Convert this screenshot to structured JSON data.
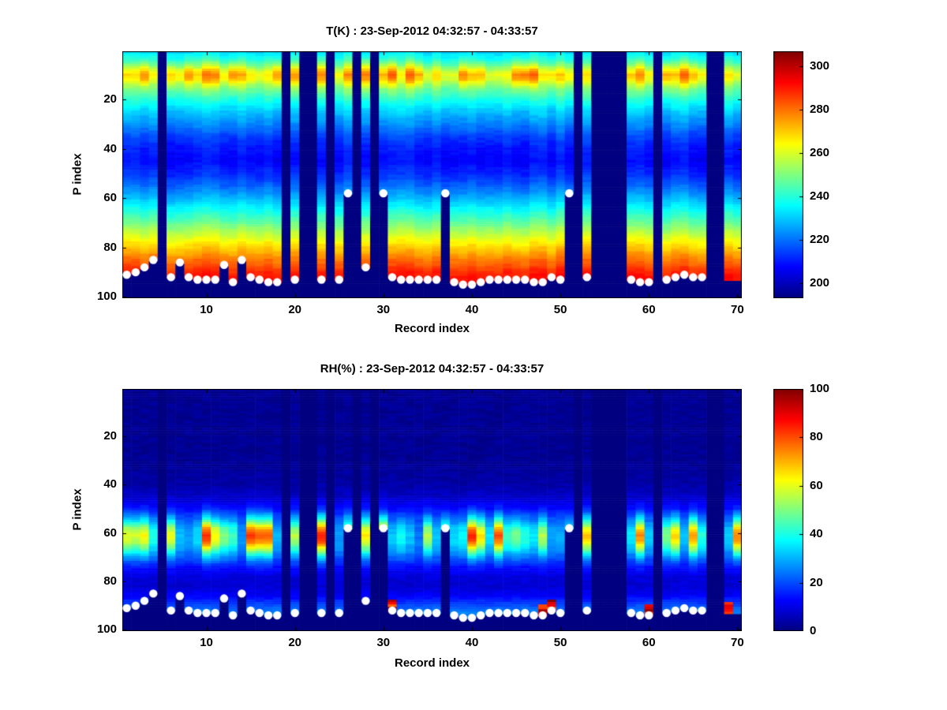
{
  "figure": {
    "background": "#ffffff",
    "text_color": "#000000"
  },
  "chart_data": [
    {
      "type": "heatmap",
      "value_model": "temperature",
      "title": "T(K) : 23-Sep-2012 04:32:57 - 04:33:57",
      "xlabel": "Record index",
      "ylabel": "P index",
      "x_axis": "record index 1-70",
      "y_axis": "pressure level index 1-100, increasing downward",
      "x_ticks": [
        10,
        20,
        30,
        40,
        50,
        60,
        70
      ],
      "y_ticks": [
        20,
        40,
        60,
        80,
        100
      ],
      "x_range": [
        0.5,
        70.5
      ],
      "y_range": [
        0.5,
        100.5
      ],
      "n_records": 70,
      "n_levels": 100,
      "colormap": "jet",
      "clim": [
        193,
        307
      ],
      "colorbar_ticks": [
        200,
        220,
        240,
        260,
        280,
        300
      ],
      "profile_control_points": [
        [
          1,
          233
        ],
        [
          4,
          242
        ],
        [
          6,
          252
        ],
        [
          8,
          264
        ],
        [
          10,
          272
        ],
        [
          12,
          268
        ],
        [
          14,
          258
        ],
        [
          16,
          250
        ],
        [
          20,
          240
        ],
        [
          25,
          230
        ],
        [
          30,
          223
        ],
        [
          35,
          215
        ],
        [
          40,
          210
        ],
        [
          45,
          208
        ],
        [
          50,
          212
        ],
        [
          55,
          219
        ],
        [
          60,
          228
        ],
        [
          65,
          238
        ],
        [
          70,
          248
        ],
        [
          75,
          259
        ],
        [
          80,
          270
        ],
        [
          85,
          280
        ],
        [
          90,
          289
        ],
        [
          95,
          295
        ],
        [
          100,
          298
        ]
      ],
      "band_level": 10,
      "band_variation": 20,
      "column_variation": 5,
      "noise": 3,
      "missing_records": [
        5,
        19,
        21,
        22,
        24,
        27,
        29,
        52,
        54,
        55,
        56,
        57,
        61,
        67,
        68
      ],
      "surface_p": [
        91,
        90,
        88,
        85,
        null,
        92,
        86,
        92,
        93,
        93,
        93,
        87,
        94,
        85,
        92,
        93,
        94,
        94,
        null,
        93,
        null,
        null,
        93,
        null,
        93,
        58,
        null,
        88,
        null,
        58,
        92,
        93,
        93,
        93,
        93,
        93,
        58,
        94,
        95,
        95,
        94,
        93,
        93,
        93,
        93,
        93,
        94,
        94,
        92,
        93,
        58,
        null,
        92,
        null,
        null,
        null,
        null,
        93,
        94,
        94,
        null,
        93,
        92,
        91,
        92,
        92,
        null,
        null,
        93,
        93
      ],
      "no_dot_records": [
        69,
        70
      ],
      "dots": "white markers drawn at surface_p level for every non-missing record except no_dot_records",
      "marker_color": "#ffffff",
      "background_color_note": "missing columns and sub-surface cells shown at colormap minimum (dark navy)"
    },
    {
      "type": "heatmap",
      "value_model": "humidity",
      "title": "RH(%) : 23-Sep-2012 04:32:57 - 04:33:57",
      "xlabel": "Record index",
      "ylabel": "P index",
      "x_axis": "record index 1-70",
      "y_axis": "pressure level index 1-100, increasing downward",
      "x_ticks": [
        10,
        20,
        30,
        40,
        50,
        60,
        70
      ],
      "y_ticks": [
        20,
        40,
        60,
        80,
        100
      ],
      "x_range": [
        0.5,
        70.5
      ],
      "y_range": [
        0.5,
        100.5
      ],
      "n_records": 70,
      "n_levels": 100,
      "colormap": "jet",
      "clim": [
        0,
        100
      ],
      "colorbar_ticks": [
        0,
        20,
        40,
        60,
        80,
        100
      ],
      "profile_control_points": [
        [
          1,
          2
        ],
        [
          30,
          2
        ],
        [
          40,
          4
        ],
        [
          45,
          7
        ],
        [
          50,
          14
        ],
        [
          55,
          28
        ],
        [
          58,
          38
        ],
        [
          61,
          42
        ],
        [
          64,
          40
        ],
        [
          67,
          33
        ],
        [
          70,
          24
        ],
        [
          74,
          14
        ],
        [
          78,
          9
        ],
        [
          82,
          8
        ],
        [
          86,
          12
        ],
        [
          90,
          20
        ],
        [
          93,
          26
        ],
        [
          96,
          20
        ],
        [
          100,
          10
        ]
      ],
      "band_level": 61,
      "missing_records": [
        5,
        19,
        21,
        22,
        24,
        27,
        29,
        52,
        54,
        55,
        56,
        57,
        61,
        67,
        68
      ],
      "surface_p": [
        91,
        90,
        88,
        85,
        null,
        92,
        86,
        92,
        93,
        93,
        93,
        87,
        94,
        85,
        92,
        93,
        94,
        94,
        null,
        93,
        null,
        null,
        93,
        null,
        93,
        58,
        null,
        88,
        null,
        58,
        92,
        93,
        93,
        93,
        93,
        93,
        58,
        94,
        95,
        95,
        94,
        93,
        93,
        93,
        93,
        93,
        94,
        94,
        92,
        93,
        58,
        null,
        92,
        null,
        null,
        null,
        null,
        93,
        94,
        94,
        null,
        93,
        92,
        91,
        92,
        92,
        null,
        null,
        93,
        93
      ],
      "no_dot_records": [
        69,
        70
      ],
      "wet_surface_records": [
        31,
        48,
        49,
        60,
        69
      ],
      "dots": "white markers drawn at surface_p level for every non-missing record except no_dot_records",
      "marker_color": "#ffffff",
      "background_color_note": "missing columns and sub-surface cells shown at colormap minimum (dark navy)"
    }
  ]
}
